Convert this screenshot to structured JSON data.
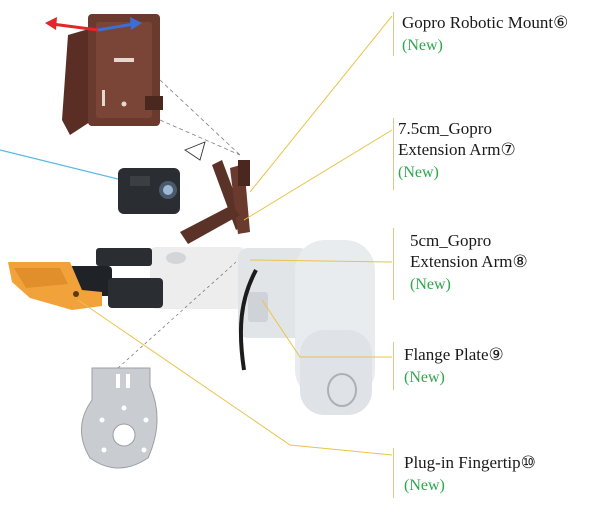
{
  "colors": {
    "callout_line": "#e8c34a",
    "new_badge": "#2aa84a",
    "label_text": "#1a1a1a",
    "gripper_orange": "#f2a23a",
    "mount_brown": "#6b3a2e",
    "arm_body": "#e9ecef",
    "camera_dark": "#2a2d31",
    "plate_silver": "#c9cdd1",
    "arrow_red": "#e3262b",
    "arrow_blue": "#3a6fd6",
    "ray_blue": "#59b8e6"
  },
  "callouts": [
    {
      "name": "Gopro Robotic Mount⑥",
      "badge": "(New)"
    },
    {
      "name": "7.5cm_Gopro",
      "name2": "Extension Arm⑦",
      "badge": "(New)"
    },
    {
      "name": "5cm_Gopro",
      "name2": "Extension Arm⑧",
      "badge": "(New)"
    },
    {
      "name": "Flange Plate⑨",
      "badge": "(New)"
    },
    {
      "name": "Plug-in Fingertip⑩",
      "badge": "(New)"
    }
  ]
}
